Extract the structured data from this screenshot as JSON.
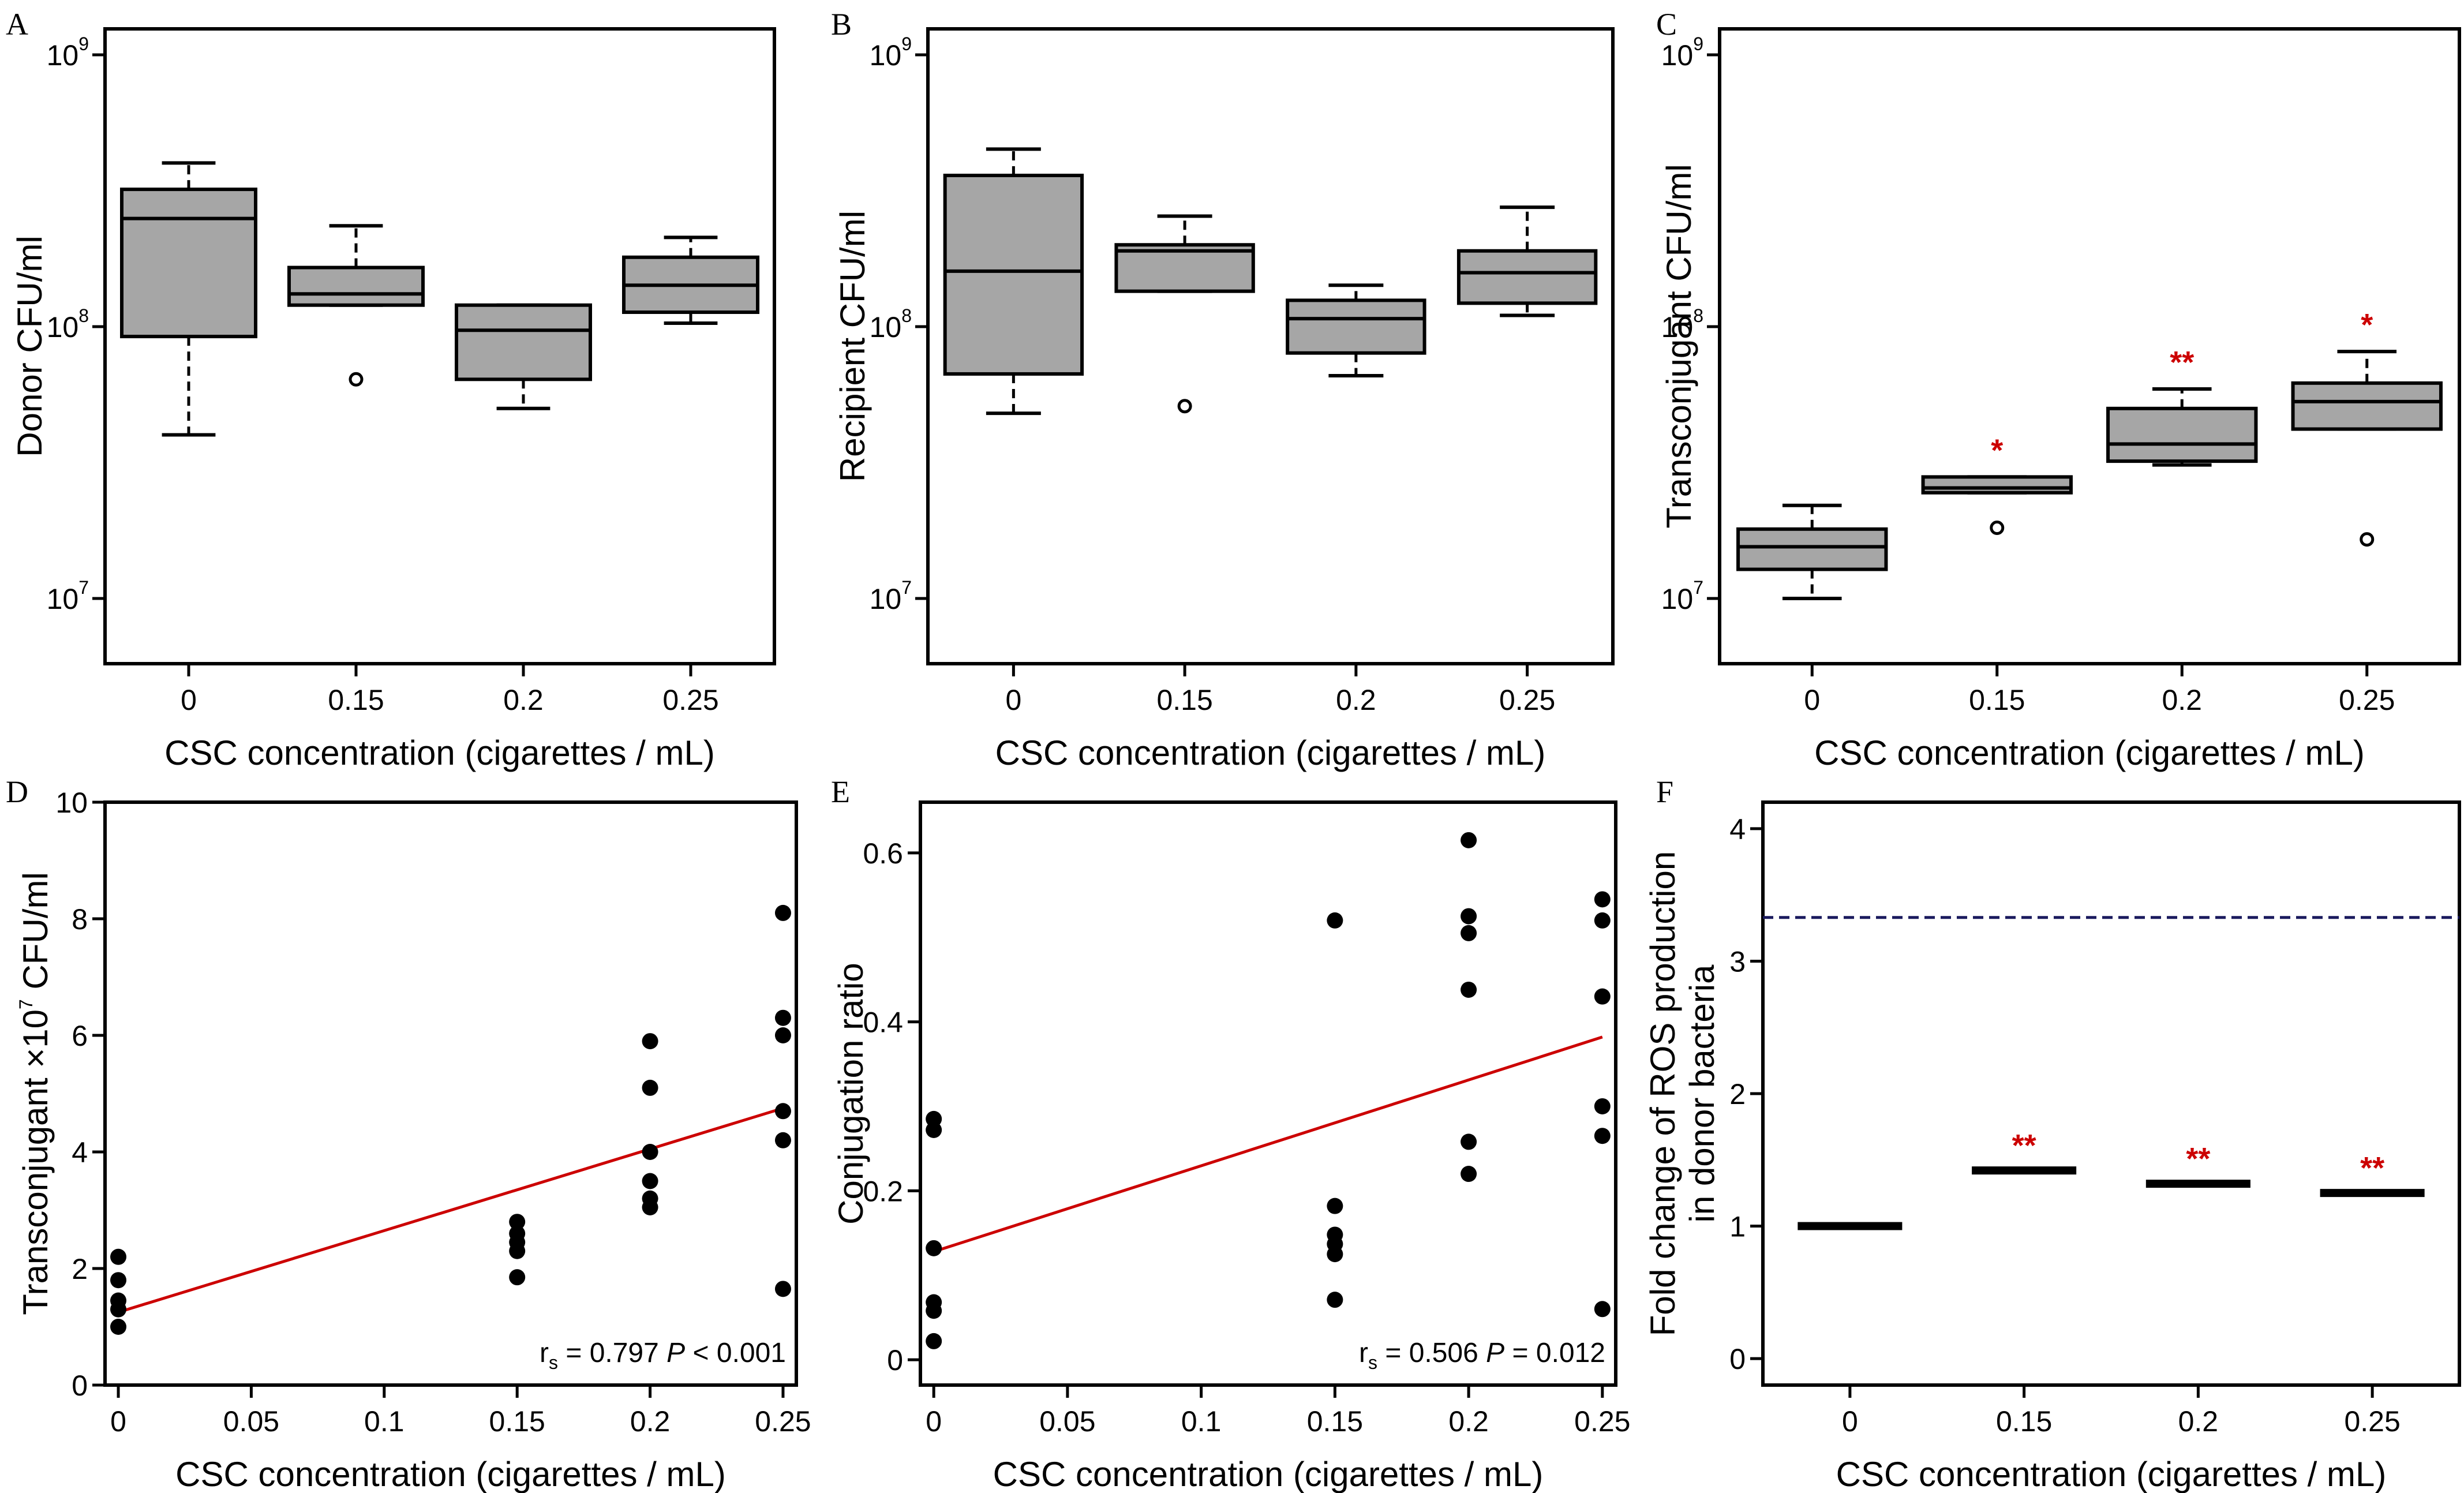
{
  "figure_labels": {
    "xlabel": "CSC concentration (cigarettes / mL)"
  },
  "chart_data": [
    {
      "panel": "A",
      "type": "box",
      "title": "",
      "ylabel": "Donor CFU/ml",
      "xlabel": "CSC concentration (cigarettes / mL)",
      "yscale": "log",
      "ylim": [
        7000000,
        1000000000
      ],
      "categories": [
        "0",
        "0.15",
        "0.2",
        "0.25"
      ],
      "boxes": [
        {
          "min": 40000000,
          "q1": 92000000,
          "median": 250000000,
          "q3": 320000000,
          "max": 400000000,
          "outliers": [],
          "sig": ""
        },
        {
          "min": 120000000,
          "q1": 120000000,
          "median": 132000000,
          "q3": 165000000,
          "max": 235000000,
          "outliers": [
            64000000
          ],
          "sig": ""
        },
        {
          "min": 50000000,
          "q1": 64000000,
          "median": 97000000,
          "q3": 120000000,
          "max": 120000000,
          "outliers": [],
          "sig": ""
        },
        {
          "min": 103000000,
          "q1": 113000000,
          "median": 142000000,
          "q3": 180000000,
          "max": 213000000,
          "outliers": [],
          "sig": ""
        }
      ],
      "y_ticks": [
        {
          "value": 1000000000,
          "base": "10",
          "exp": "9"
        },
        {
          "value": 100000000,
          "base": "10",
          "exp": "8"
        },
        {
          "value": 10000000,
          "base": "10",
          "exp": "7"
        }
      ]
    },
    {
      "panel": "B",
      "type": "box",
      "title": "",
      "ylabel": "Recipient CFU/ml",
      "xlabel": "CSC concentration (cigarettes / mL)",
      "yscale": "log",
      "ylim": [
        7000000,
        1000000000
      ],
      "categories": [
        "0",
        "0.15",
        "0.2",
        "0.25"
      ],
      "boxes": [
        {
          "min": 48000000,
          "q1": 67000000,
          "median": 160000000,
          "q3": 360000000,
          "max": 450000000,
          "outliers": [],
          "sig": ""
        },
        {
          "min": 135000000,
          "q1": 135000000,
          "median": 190000000,
          "q3": 200000000,
          "max": 255000000,
          "outliers": [
            51000000
          ],
          "sig": ""
        },
        {
          "min": 66000000,
          "q1": 80000000,
          "median": 107000000,
          "q3": 125000000,
          "max": 142000000,
          "outliers": [],
          "sig": ""
        },
        {
          "min": 110000000,
          "q1": 122000000,
          "median": 158000000,
          "q3": 190000000,
          "max": 275000000,
          "outliers": [],
          "sig": ""
        }
      ],
      "y_ticks": [
        {
          "value": 1000000000,
          "base": "10",
          "exp": "9"
        },
        {
          "value": 100000000,
          "base": "10",
          "exp": "8"
        },
        {
          "value": 10000000,
          "base": "10",
          "exp": "7"
        }
      ]
    },
    {
      "panel": "C",
      "type": "box",
      "title": "",
      "ylabel": "Transconjugant CFU/ml",
      "xlabel": "CSC concentration (cigarettes / mL)",
      "yscale": "log",
      "ylim": [
        7000000,
        1000000000
      ],
      "categories": [
        "0",
        "0.15",
        "0.2",
        "0.25"
      ],
      "boxes": [
        {
          "min": 10000000,
          "q1": 12800000,
          "median": 15500000,
          "q3": 18000000,
          "max": 22000000,
          "outliers": [],
          "sig": ""
        },
        {
          "min": 24500000,
          "q1": 24500000,
          "median": 25500000,
          "q3": 28000000,
          "max": 28000000,
          "outliers": [
            18200000
          ],
          "sig": "*"
        },
        {
          "min": 31000000,
          "q1": 32000000,
          "median": 37000000,
          "q3": 50000000,
          "max": 59000000,
          "outliers": [],
          "sig": "**"
        },
        {
          "min": 42000000,
          "q1": 42000000,
          "median": 53000000,
          "q3": 62000000,
          "max": 81000000,
          "outliers": [
            16500000
          ],
          "sig": "*"
        }
      ],
      "y_ticks": [
        {
          "value": 1000000000,
          "base": "10",
          "exp": "9"
        },
        {
          "value": 100000000,
          "base": "10",
          "exp": "8"
        },
        {
          "value": 10000000,
          "base": "10",
          "exp": "7"
        }
      ]
    },
    {
      "panel": "D",
      "type": "scatter",
      "title": "",
      "ylabel_main": "Transconjugant ×10",
      "ylabel_exp": "7",
      "ylabel_tail": " CFU/ml",
      "xlabel": "CSC concentration (cigarettes / mL)",
      "xlim": [
        -0.005,
        0.255
      ],
      "ylim": [
        0,
        10
      ],
      "x_ticks": [
        "0",
        "0.05",
        "0.1",
        "0.15",
        "0.2",
        "0.25"
      ],
      "x_tick_values": [
        0,
        0.05,
        0.1,
        0.15,
        0.2,
        0.25
      ],
      "y_ticks": [
        "0",
        "2",
        "4",
        "6",
        "8",
        "10"
      ],
      "y_tick_values": [
        0,
        2,
        4,
        6,
        8,
        10
      ],
      "points": [
        {
          "x": 0,
          "y": 2.2
        },
        {
          "x": 0,
          "y": 1.8
        },
        {
          "x": 0,
          "y": 1.45
        },
        {
          "x": 0,
          "y": 1.3
        },
        {
          "x": 0,
          "y": 1.0
        },
        {
          "x": 0.15,
          "y": 2.8
        },
        {
          "x": 0.15,
          "y": 2.6
        },
        {
          "x": 0.15,
          "y": 2.45
        },
        {
          "x": 0.15,
          "y": 2.3
        },
        {
          "x": 0.15,
          "y": 1.85
        },
        {
          "x": 0.2,
          "y": 5.9
        },
        {
          "x": 0.2,
          "y": 5.1
        },
        {
          "x": 0.2,
          "y": 4.0
        },
        {
          "x": 0.2,
          "y": 3.5
        },
        {
          "x": 0.2,
          "y": 3.2
        },
        {
          "x": 0.2,
          "y": 3.05
        },
        {
          "x": 0.25,
          "y": 8.1
        },
        {
          "x": 0.25,
          "y": 6.3
        },
        {
          "x": 0.25,
          "y": 6.0
        },
        {
          "x": 0.25,
          "y": 4.7
        },
        {
          "x": 0.25,
          "y": 4.2
        },
        {
          "x": 0.25,
          "y": 1.65
        }
      ],
      "fit_line": {
        "x": [
          0,
          0.25
        ],
        "y": [
          1.25,
          4.75
        ]
      },
      "stat_r": "r",
      "stat_sub": "s",
      "stat_rest": " = 0.797 ",
      "stat_p": "P",
      "stat_tail": " < 0.001"
    },
    {
      "panel": "E",
      "type": "scatter",
      "title": "",
      "ylabel": "Conjugation ratio",
      "xlabel": "CSC concentration (cigarettes / mL)",
      "xlim": [
        -0.005,
        0.255
      ],
      "ylim": [
        -0.03,
        0.66
      ],
      "x_ticks": [
        "0",
        "0.05",
        "0.1",
        "0.15",
        "0.2",
        "0.25"
      ],
      "x_tick_values": [
        0,
        0.05,
        0.1,
        0.15,
        0.2,
        0.25
      ],
      "y_ticks": [
        "0",
        "0.2",
        "0.4",
        "0.6"
      ],
      "y_tick_values": [
        0,
        0.2,
        0.4,
        0.6
      ],
      "points": [
        {
          "x": 0,
          "y": 0.285
        },
        {
          "x": 0,
          "y": 0.272
        },
        {
          "x": 0,
          "y": 0.132
        },
        {
          "x": 0,
          "y": 0.068
        },
        {
          "x": 0,
          "y": 0.058
        },
        {
          "x": 0,
          "y": 0.022
        },
        {
          "x": 0.15,
          "y": 0.52
        },
        {
          "x": 0.15,
          "y": 0.182
        },
        {
          "x": 0.15,
          "y": 0.148
        },
        {
          "x": 0.15,
          "y": 0.137
        },
        {
          "x": 0.15,
          "y": 0.125
        },
        {
          "x": 0.15,
          "y": 0.071
        },
        {
          "x": 0.2,
          "y": 0.615
        },
        {
          "x": 0.2,
          "y": 0.525
        },
        {
          "x": 0.2,
          "y": 0.505
        },
        {
          "x": 0.2,
          "y": 0.438
        },
        {
          "x": 0.2,
          "y": 0.258
        },
        {
          "x": 0.2,
          "y": 0.22
        },
        {
          "x": 0.25,
          "y": 0.545
        },
        {
          "x": 0.25,
          "y": 0.52
        },
        {
          "x": 0.25,
          "y": 0.43
        },
        {
          "x": 0.25,
          "y": 0.3
        },
        {
          "x": 0.25,
          "y": 0.265
        },
        {
          "x": 0.25,
          "y": 0.06
        }
      ],
      "fit_line": {
        "x": [
          0,
          0.25
        ],
        "y": [
          0.128,
          0.382
        ]
      },
      "stat_r": "r",
      "stat_sub": "s",
      "stat_rest": " = 0.506 ",
      "stat_p": "P",
      "stat_tail": " = 0.012"
    },
    {
      "panel": "F",
      "type": "bar",
      "title": "",
      "ylabel_line1": "Fold change of ROS production",
      "ylabel_line2": "in donor bacteria",
      "xlabel": "CSC concentration (cigarettes / mL)",
      "ylim": [
        -0.2,
        4.2
      ],
      "categories": [
        "0",
        "0.15",
        "0.2",
        "0.25"
      ],
      "values": [
        1.0,
        1.42,
        1.32,
        1.25
      ],
      "sig": [
        "",
        "**",
        "**",
        "**"
      ],
      "reference_line": 3.33,
      "y_ticks": [
        "0",
        "1",
        "2",
        "3",
        "4"
      ],
      "y_tick_values": [
        0,
        1,
        2,
        3,
        4
      ]
    }
  ]
}
